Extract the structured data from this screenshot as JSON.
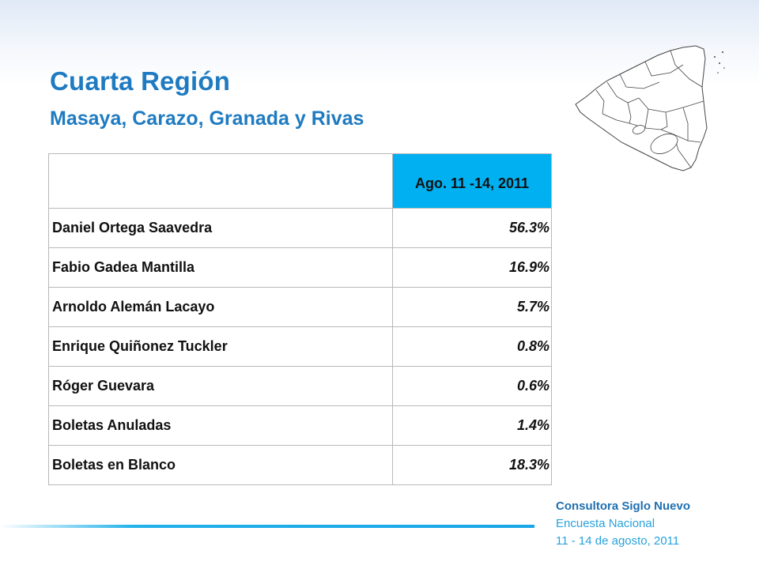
{
  "slide": {
    "title": "Cuarta Región",
    "subtitle": "Masaya, Carazo, Granada y Rivas"
  },
  "map": {
    "icon": "nicaragua-map-icon"
  },
  "table": {
    "period_header": "Ago. 11 -14, 2011",
    "rows": [
      {
        "name": "Daniel Ortega Saavedra",
        "value": "56.3%"
      },
      {
        "name": "Fabio Gadea Mantilla",
        "value": "16.9%"
      },
      {
        "name": "Arnoldo Alemán Lacayo",
        "value": "5.7%"
      },
      {
        "name": "Enrique Quiñonez Tuckler",
        "value": "0.8%"
      },
      {
        "name": "Róger Guevara",
        "value": "0.6%"
      },
      {
        "name": "Boletas Anuladas",
        "value": "1.4%"
      },
      {
        "name": "Boletas en Blanco",
        "value": "18.3%"
      }
    ]
  },
  "footer": {
    "org": "Consultora  Siglo Nuevo",
    "survey": "Encuesta Nacional",
    "dates": "11 - 14 de agosto, 2011"
  },
  "colors": {
    "title": "#1f7bc1",
    "header_fill": "#00b0f0",
    "footer_line": "#18a6e6"
  }
}
